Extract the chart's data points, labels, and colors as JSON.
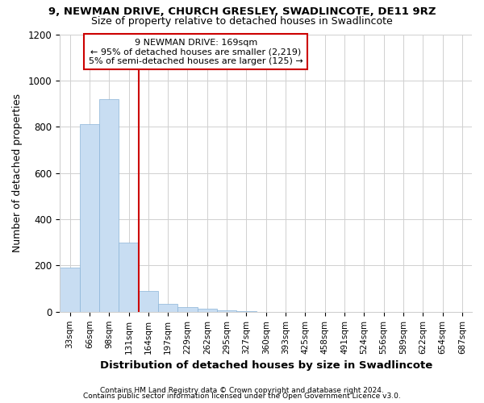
{
  "title1": "9, NEWMAN DRIVE, CHURCH GRESLEY, SWADLINCOTE, DE11 9RZ",
  "title2": "Size of property relative to detached houses in Swadlincote",
  "xlabel": "Distribution of detached houses by size in Swadlincote",
  "ylabel": "Number of detached properties",
  "bar_categories": [
    "33sqm",
    "66sqm",
    "98sqm",
    "131sqm",
    "164sqm",
    "197sqm",
    "229sqm",
    "262sqm",
    "295sqm",
    "327sqm",
    "360sqm",
    "393sqm",
    "425sqm",
    "458sqm",
    "491sqm",
    "524sqm",
    "556sqm",
    "589sqm",
    "622sqm",
    "654sqm",
    "687sqm"
  ],
  "bar_values": [
    190,
    810,
    920,
    300,
    90,
    35,
    20,
    15,
    5,
    2,
    0,
    0,
    0,
    0,
    0,
    0,
    0,
    0,
    0,
    0,
    0
  ],
  "bar_color": "#c8ddf2",
  "bar_edge_color": "#8ab4d8",
  "vline_index": 4,
  "annotation_line1": "9 NEWMAN DRIVE: 169sqm",
  "annotation_line2": "← 95% of detached houses are smaller (2,219)",
  "annotation_line3": "5% of semi-detached houses are larger (125) →",
  "vline_color": "#cc0000",
  "annotation_box_color": "#cc0000",
  "ylim": [
    0,
    1200
  ],
  "yticks": [
    0,
    200,
    400,
    600,
    800,
    1000,
    1200
  ],
  "footer1": "Contains HM Land Registry data © Crown copyright and database right 2024.",
  "footer2": "Contains public sector information licensed under the Open Government Licence v3.0.",
  "bg_color": "#ffffff",
  "plot_bg_color": "#ffffff"
}
